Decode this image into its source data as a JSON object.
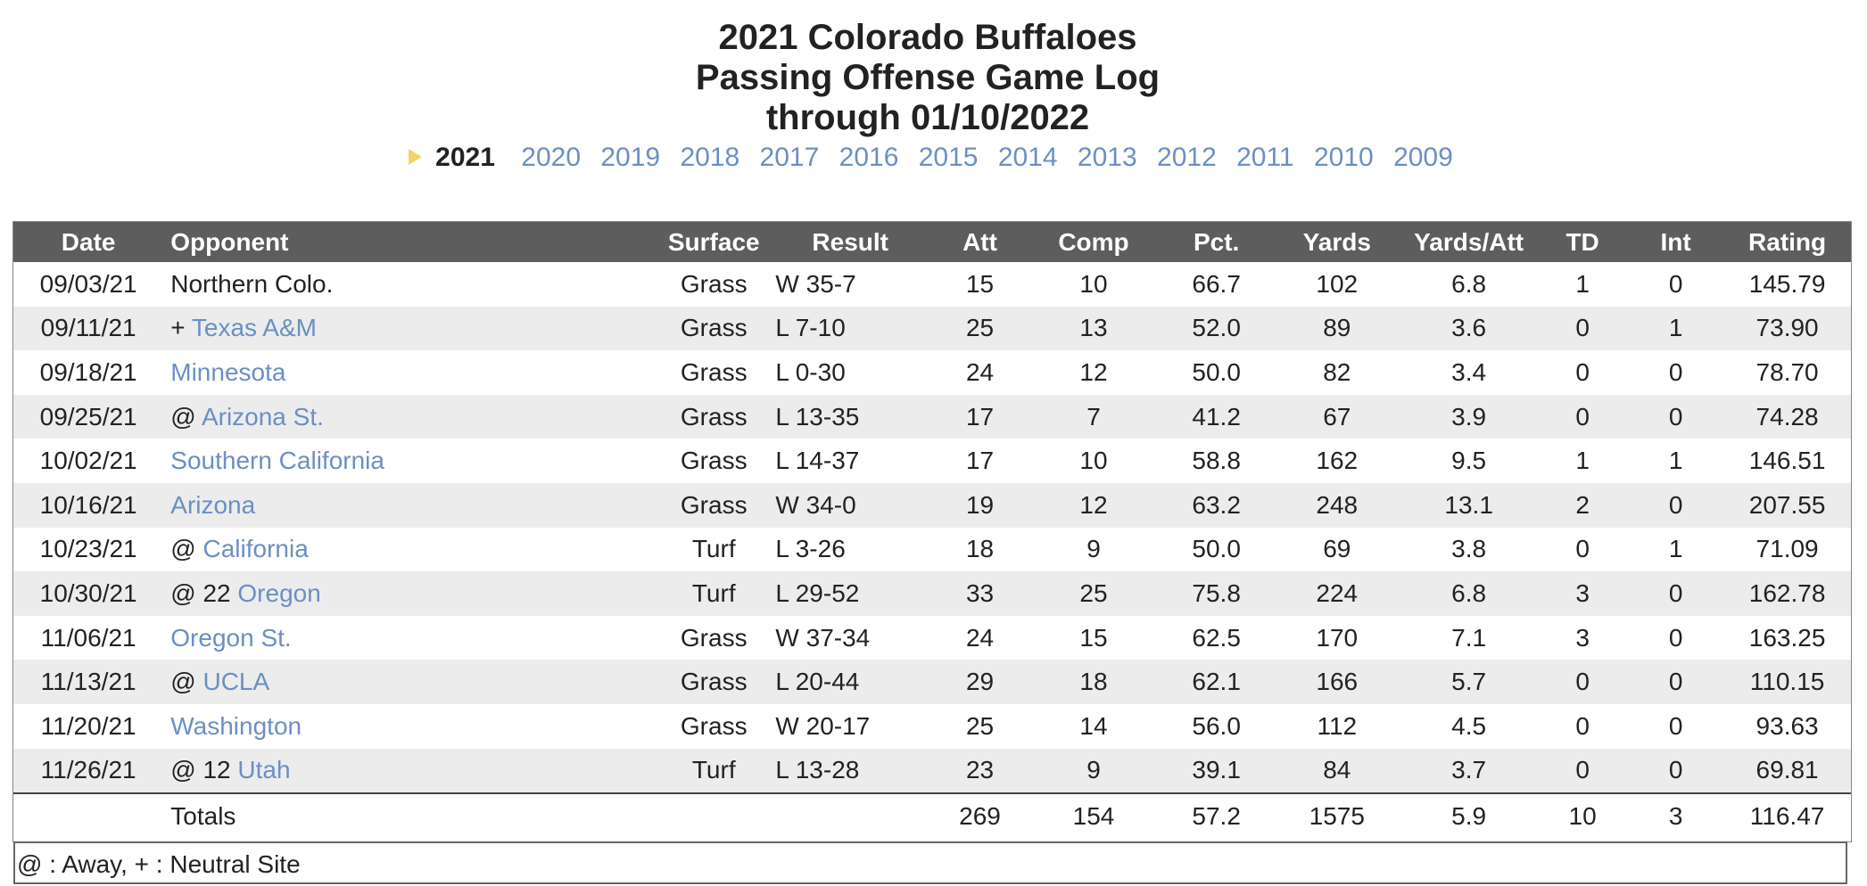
{
  "title": {
    "line1": "2021 Colorado Buffaloes",
    "line2": "Passing Offense Game Log",
    "line3": "through 01/10/2022"
  },
  "years": {
    "current": "2021",
    "links": [
      "2020",
      "2019",
      "2018",
      "2017",
      "2016",
      "2015",
      "2014",
      "2013",
      "2012",
      "2011",
      "2010",
      "2009"
    ]
  },
  "table": {
    "headers": {
      "date": "Date",
      "opponent": "Opponent",
      "surface": "Surface",
      "result": "Result",
      "att": "Att",
      "comp": "Comp",
      "pct": "Pct.",
      "yards": "Yards",
      "ypa": "Yards/Att",
      "td": "TD",
      "int": "Int",
      "rating": "Rating"
    },
    "rows": [
      {
        "date": "09/03/21",
        "prefix": "",
        "opponent": "Northern Colo.",
        "linked": false,
        "surface": "Grass",
        "result": "W 35-7",
        "att": "15",
        "comp": "10",
        "pct": "66.7",
        "yards": "102",
        "ypa": "6.8",
        "td": "1",
        "int": "0",
        "rating": "145.79"
      },
      {
        "date": "09/11/21",
        "prefix": "+",
        "opponent": "Texas A&M",
        "linked": true,
        "surface": "Grass",
        "result": "L 7-10",
        "att": "25",
        "comp": "13",
        "pct": "52.0",
        "yards": "89",
        "ypa": "3.6",
        "td": "0",
        "int": "1",
        "rating": "73.90"
      },
      {
        "date": "09/18/21",
        "prefix": "",
        "opponent": "Minnesota",
        "linked": true,
        "surface": "Grass",
        "result": "L 0-30",
        "att": "24",
        "comp": "12",
        "pct": "50.0",
        "yards": "82",
        "ypa": "3.4",
        "td": "0",
        "int": "0",
        "rating": "78.70"
      },
      {
        "date": "09/25/21",
        "prefix": "@",
        "opponent": "Arizona St.",
        "linked": true,
        "surface": "Grass",
        "result": "L 13-35",
        "att": "17",
        "comp": "7",
        "pct": "41.2",
        "yards": "67",
        "ypa": "3.9",
        "td": "0",
        "int": "0",
        "rating": "74.28"
      },
      {
        "date": "10/02/21",
        "prefix": "",
        "opponent": "Southern California",
        "linked": true,
        "surface": "Grass",
        "result": "L 14-37",
        "att": "17",
        "comp": "10",
        "pct": "58.8",
        "yards": "162",
        "ypa": "9.5",
        "td": "1",
        "int": "1",
        "rating": "146.51"
      },
      {
        "date": "10/16/21",
        "prefix": "",
        "opponent": "Arizona",
        "linked": true,
        "surface": "Grass",
        "result": "W 34-0",
        "att": "19",
        "comp": "12",
        "pct": "63.2",
        "yards": "248",
        "ypa": "13.1",
        "td": "2",
        "int": "0",
        "rating": "207.55"
      },
      {
        "date": "10/23/21",
        "prefix": "@",
        "opponent": "California",
        "linked": true,
        "surface": "Turf",
        "result": "L 3-26",
        "att": "18",
        "comp": "9",
        "pct": "50.0",
        "yards": "69",
        "ypa": "3.8",
        "td": "0",
        "int": "1",
        "rating": "71.09"
      },
      {
        "date": "10/30/21",
        "prefix": "@ 22",
        "opponent": "Oregon",
        "linked": true,
        "surface": "Turf",
        "result": "L 29-52",
        "att": "33",
        "comp": "25",
        "pct": "75.8",
        "yards": "224",
        "ypa": "6.8",
        "td": "3",
        "int": "0",
        "rating": "162.78"
      },
      {
        "date": "11/06/21",
        "prefix": "",
        "opponent": "Oregon St.",
        "linked": true,
        "surface": "Grass",
        "result": "W 37-34",
        "att": "24",
        "comp": "15",
        "pct": "62.5",
        "yards": "170",
        "ypa": "7.1",
        "td": "3",
        "int": "0",
        "rating": "163.25"
      },
      {
        "date": "11/13/21",
        "prefix": "@",
        "opponent": "UCLA",
        "linked": true,
        "surface": "Grass",
        "result": "L 20-44",
        "att": "29",
        "comp": "18",
        "pct": "62.1",
        "yards": "166",
        "ypa": "5.7",
        "td": "0",
        "int": "0",
        "rating": "110.15"
      },
      {
        "date": "11/20/21",
        "prefix": "",
        "opponent": "Washington",
        "linked": true,
        "surface": "Grass",
        "result": "W 20-17",
        "att": "25",
        "comp": "14",
        "pct": "56.0",
        "yards": "112",
        "ypa": "4.5",
        "td": "0",
        "int": "0",
        "rating": "93.63"
      },
      {
        "date": "11/26/21",
        "prefix": "@ 12",
        "opponent": "Utah",
        "linked": true,
        "surface": "Turf",
        "result": "L 13-28",
        "att": "23",
        "comp": "9",
        "pct": "39.1",
        "yards": "84",
        "ypa": "3.7",
        "td": "0",
        "int": "0",
        "rating": "69.81"
      }
    ],
    "totals": {
      "label": "Totals",
      "att": "269",
      "comp": "154",
      "pct": "57.2",
      "yards": "1575",
      "ypa": "5.9",
      "td": "10",
      "int": "3",
      "rating": "116.47"
    }
  },
  "legend": "@ : Away, + : Neutral Site",
  "colors": {
    "link": "#6b8fc4",
    "header_bg": "#5d5d5d",
    "stripe": "#ececec",
    "arrow": "#f2d36a"
  }
}
